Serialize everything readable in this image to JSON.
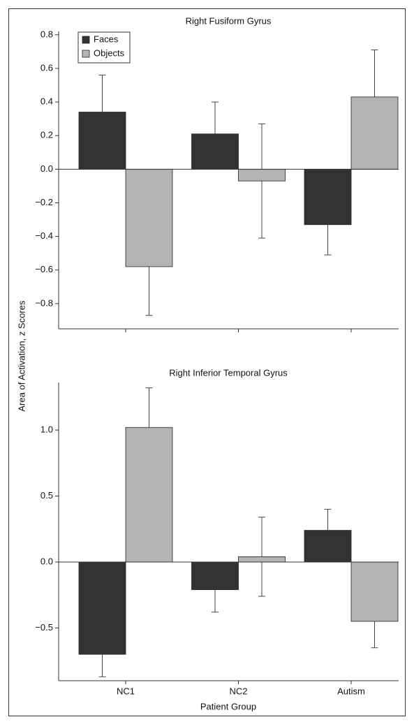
{
  "ylabel": "Area of Activation, z Scores",
  "xlabel": "Patient Group",
  "chart_data": [
    {
      "type": "bar",
      "title": "Right Fusiform Gyrus",
      "legend": "upper left",
      "ylim": [
        -0.95,
        0.82
      ],
      "yticks": [
        {
          "value": 0.8,
          "label": "0.8"
        },
        {
          "value": 0.6,
          "label": "0.6"
        },
        {
          "value": 0.4,
          "label": "0.4"
        },
        {
          "value": 0.2,
          "label": "0.2"
        },
        {
          "value": 0,
          "label": "0.0"
        },
        {
          "value": -0.2,
          "label": "−0.2"
        },
        {
          "value": -0.4,
          "label": "−0.4"
        },
        {
          "value": -0.6,
          "label": "−0.6"
        },
        {
          "value": -0.8,
          "label": "−0.8"
        }
      ],
      "series": [
        {
          "name": "Faces",
          "color": "#333333",
          "values": [
            0.34,
            0.21,
            -0.33
          ],
          "errors": [
            0.22,
            0.19,
            0.18
          ]
        },
        {
          "name": "Objects",
          "color": "#b3b3b3",
          "values": [
            -0.58,
            -0.07,
            0.43
          ],
          "errors": [
            0.29,
            0.34,
            0.28
          ]
        }
      ]
    },
    {
      "type": "bar",
      "title": "Right Inferior Temporal Gyrus",
      "categories": [
        "NC1",
        "NC2",
        "Autism"
      ],
      "ylim": [
        -0.9,
        1.36
      ],
      "yticks": [
        {
          "value": 1.0,
          "label": "1.0"
        },
        {
          "value": 0.5,
          "label": "0.5"
        },
        {
          "value": 0,
          "label": "0.0"
        },
        {
          "value": -0.5,
          "label": "−0.5"
        }
      ],
      "series": [
        {
          "name": "Faces",
          "color": "#333333",
          "values": [
            -0.7,
            -0.21,
            0.24
          ],
          "errors": [
            0.17,
            0.17,
            0.16
          ]
        },
        {
          "name": "Objects",
          "color": "#b3b3b3",
          "values": [
            1.02,
            0.04,
            -0.45
          ],
          "errors": [
            0.3,
            0.3,
            0.2
          ]
        }
      ]
    }
  ]
}
